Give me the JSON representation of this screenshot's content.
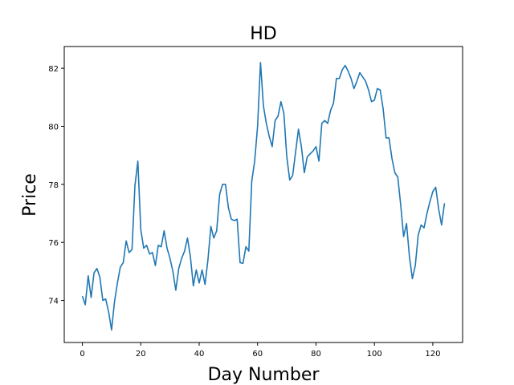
{
  "chart_data": {
    "type": "line",
    "title": "HD",
    "xlabel": "Day Number",
    "ylabel": "Price",
    "xlim": [
      -6.2,
      130.2
    ],
    "ylim": [
      72.55,
      82.75
    ],
    "xticks": [
      0,
      20,
      40,
      60,
      80,
      100,
      120
    ],
    "yticks": [
      74,
      76,
      78,
      80,
      82
    ],
    "grid": false,
    "series": [
      {
        "name": "HD",
        "color": "#1f77b4",
        "x": [
          0,
          1,
          2,
          3,
          4,
          5,
          6,
          7,
          8,
          9,
          10,
          11,
          12,
          13,
          14,
          15,
          16,
          17,
          18,
          19,
          20,
          21,
          22,
          23,
          24,
          25,
          26,
          27,
          28,
          29,
          30,
          31,
          32,
          33,
          34,
          35,
          36,
          37,
          38,
          39,
          40,
          41,
          42,
          43,
          44,
          45,
          46,
          47,
          48,
          49,
          50,
          51,
          52,
          53,
          54,
          55,
          56,
          57,
          58,
          59,
          60,
          61,
          62,
          63,
          64,
          65,
          66,
          67,
          68,
          69,
          70,
          71,
          72,
          73,
          74,
          75,
          76,
          77,
          78,
          79,
          80,
          81,
          82,
          83,
          84,
          85,
          86,
          87,
          88,
          89,
          90,
          91,
          92,
          93,
          94,
          95,
          96,
          97,
          98,
          99,
          100,
          101,
          102,
          103,
          104,
          105,
          106,
          107,
          108,
          109,
          110,
          111,
          112,
          113,
          114,
          115,
          116,
          117,
          118,
          119,
          120,
          121,
          122,
          123,
          124
        ],
        "values": [
          74.15,
          73.85,
          74.85,
          74.1,
          74.95,
          75.1,
          74.8,
          74.0,
          74.05,
          73.6,
          72.98,
          73.95,
          74.6,
          75.15,
          75.3,
          76.05,
          75.65,
          75.75,
          77.95,
          78.8,
          76.45,
          75.8,
          75.9,
          75.6,
          75.65,
          75.2,
          75.9,
          75.85,
          76.4,
          75.8,
          75.45,
          75.0,
          74.35,
          75.1,
          75.45,
          75.7,
          76.15,
          75.5,
          74.5,
          75.05,
          74.6,
          75.05,
          74.55,
          75.4,
          76.55,
          76.15,
          76.4,
          77.65,
          78.0,
          78.0,
          77.2,
          76.8,
          76.75,
          76.8,
          75.3,
          75.28,
          75.85,
          75.7,
          78.1,
          78.8,
          80.0,
          82.2,
          80.7,
          80.1,
          79.65,
          79.3,
          80.2,
          80.35,
          80.85,
          80.45,
          78.95,
          78.15,
          78.3,
          79.1,
          79.9,
          79.3,
          78.4,
          78.95,
          79.05,
          79.15,
          79.3,
          78.8,
          80.1,
          80.2,
          80.1,
          80.55,
          80.8,
          81.65,
          81.65,
          81.95,
          82.1,
          81.9,
          81.65,
          81.3,
          81.55,
          81.85,
          81.7,
          81.55,
          81.25,
          80.85,
          80.9,
          81.3,
          81.25,
          80.6,
          79.6,
          79.6,
          78.9,
          78.4,
          78.25,
          77.3,
          76.2,
          76.65,
          75.5,
          74.75,
          75.2,
          76.25,
          76.6,
          76.5,
          77.0,
          77.4,
          77.75,
          77.9,
          77.15,
          76.6,
          77.35
        ]
      }
    ]
  }
}
